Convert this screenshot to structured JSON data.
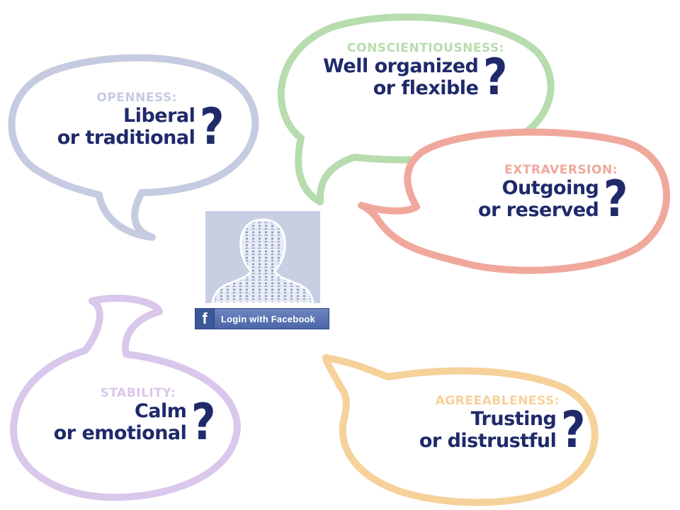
{
  "traits": {
    "openness": {
      "label": "OPENNESS:",
      "line1": "Liberal",
      "line2": "or traditional",
      "qmark": "?",
      "color": "#c5cbe0"
    },
    "conscientiousness": {
      "label": "CONSCIENTIOUSNESS:",
      "line1": "Well organized",
      "line2": "or flexible",
      "qmark": "?",
      "color": "#b7dcae"
    },
    "extraversion": {
      "label": "EXTRAVERSION:",
      "line1": "Outgoing",
      "line2": "or reserved",
      "qmark": "?",
      "color": "#f0a89c"
    },
    "stability": {
      "label": "STABILITY:",
      "line1": "Calm",
      "line2": "or emotional",
      "qmark": "?",
      "color": "#d9c7ec"
    },
    "agreeableness": {
      "label": "AGREEABLENESS:",
      "line1": "Trusting",
      "line2": "or distrustful",
      "qmark": "?",
      "color": "#f6d199"
    }
  },
  "text_color": "#1f2a6b",
  "login": {
    "icon": "facebook-f-icon",
    "glyph": "f",
    "label": "Login with Facebook",
    "color": "#3b5998"
  },
  "profile": {
    "icon": "person-silhouette-icon",
    "background": "#c7cfe3"
  }
}
